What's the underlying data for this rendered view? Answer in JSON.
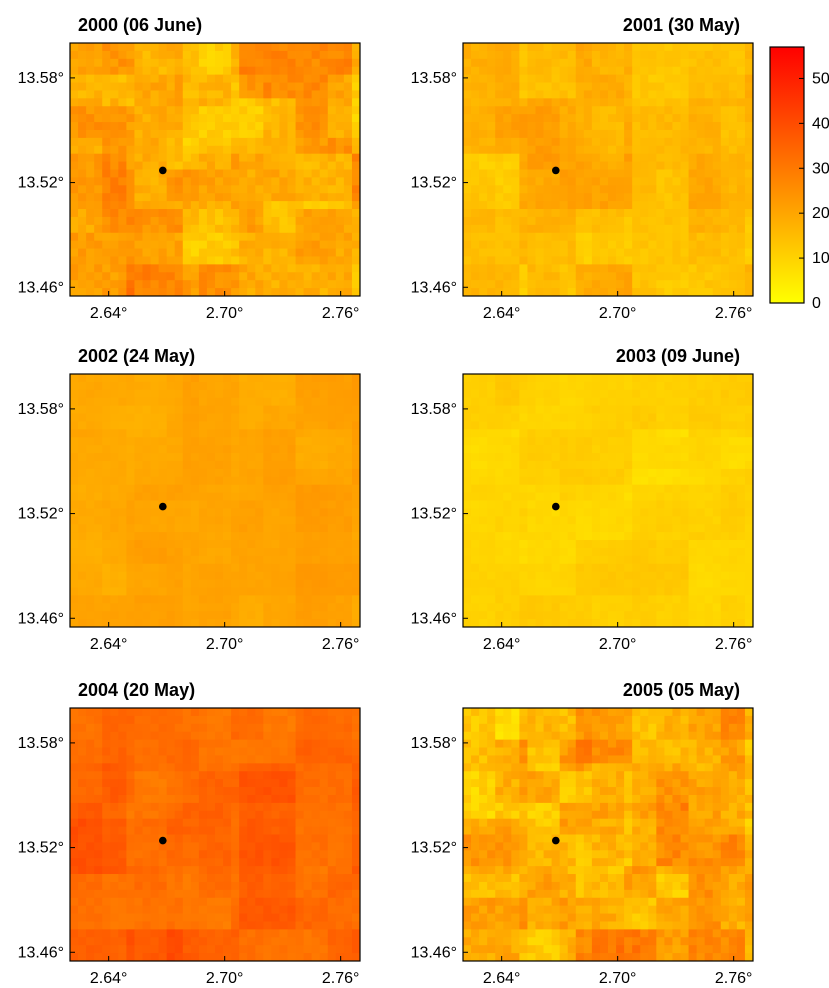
{
  "figure": {
    "colorbar": {
      "min": 0,
      "max": 57,
      "ticks": [
        "0",
        "10",
        "20",
        "30",
        "40",
        "50"
      ],
      "colormap": "autumn-reversed",
      "color_low": "#ffff00",
      "color_high": "#ff0000"
    }
  },
  "chart_data": [
    {
      "type": "heatmap",
      "title": "2000 (06 June)",
      "xticks": [
        "2.64°",
        "2.70°",
        "2.76°"
      ],
      "yticks": [
        "13.58°",
        "13.52°",
        "13.46°"
      ],
      "xlim": [
        2.62,
        2.77
      ],
      "ylim": [
        13.455,
        13.6
      ],
      "marker": [
        2.668,
        13.527
      ],
      "mean_value": 22,
      "palette_range": [
        5,
        35
      ]
    },
    {
      "type": "heatmap",
      "title": "2001 (30 May)",
      "xticks": [
        "2.64°",
        "2.70°",
        "2.76°"
      ],
      "yticks": [
        "13.58°",
        "13.52°",
        "13.46°"
      ],
      "xlim": [
        2.62,
        2.77
      ],
      "ylim": [
        13.455,
        13.6
      ],
      "marker": [
        2.668,
        13.527
      ],
      "mean_value": 15,
      "palette_range": [
        8,
        25
      ]
    },
    {
      "type": "heatmap",
      "title": "2002 (24 May)",
      "xticks": [
        "2.64°",
        "2.70°",
        "2.76°"
      ],
      "yticks": [
        "13.58°",
        "13.52°",
        "13.46°"
      ],
      "xlim": [
        2.62,
        2.77
      ],
      "ylim": [
        13.455,
        13.6
      ],
      "marker": [
        2.668,
        13.524
      ],
      "mean_value": 20,
      "palette_range": [
        17,
        24
      ]
    },
    {
      "type": "heatmap",
      "title": "2003 (09 June)",
      "xticks": [
        "2.64°",
        "2.70°",
        "2.76°"
      ],
      "yticks": [
        "13.58°",
        "13.52°",
        "13.46°"
      ],
      "xlim": [
        2.62,
        2.77
      ],
      "ylim": [
        13.455,
        13.6
      ],
      "marker": [
        2.668,
        13.524
      ],
      "mean_value": 9,
      "palette_range": [
        6,
        14
      ]
    },
    {
      "type": "heatmap",
      "title": "2004 (20 May)",
      "xticks": [
        "2.64°",
        "2.70°",
        "2.76°"
      ],
      "yticks": [
        "13.58°",
        "13.52°",
        "13.46°"
      ],
      "xlim": [
        2.62,
        2.77
      ],
      "ylim": [
        13.455,
        13.6
      ],
      "marker": [
        2.668,
        13.524
      ],
      "mean_value": 35,
      "palette_range": [
        28,
        42
      ]
    },
    {
      "type": "heatmap",
      "title": "2005 (05 May)",
      "xticks": [
        "2.64°",
        "2.70°",
        "2.76°"
      ],
      "yticks": [
        "13.58°",
        "13.52°",
        "13.46°"
      ],
      "xlim": [
        2.62,
        2.77
      ],
      "ylim": [
        13.455,
        13.6
      ],
      "marker": [
        2.668,
        13.524
      ],
      "mean_value": 18,
      "palette_range": [
        2,
        38
      ]
    }
  ]
}
